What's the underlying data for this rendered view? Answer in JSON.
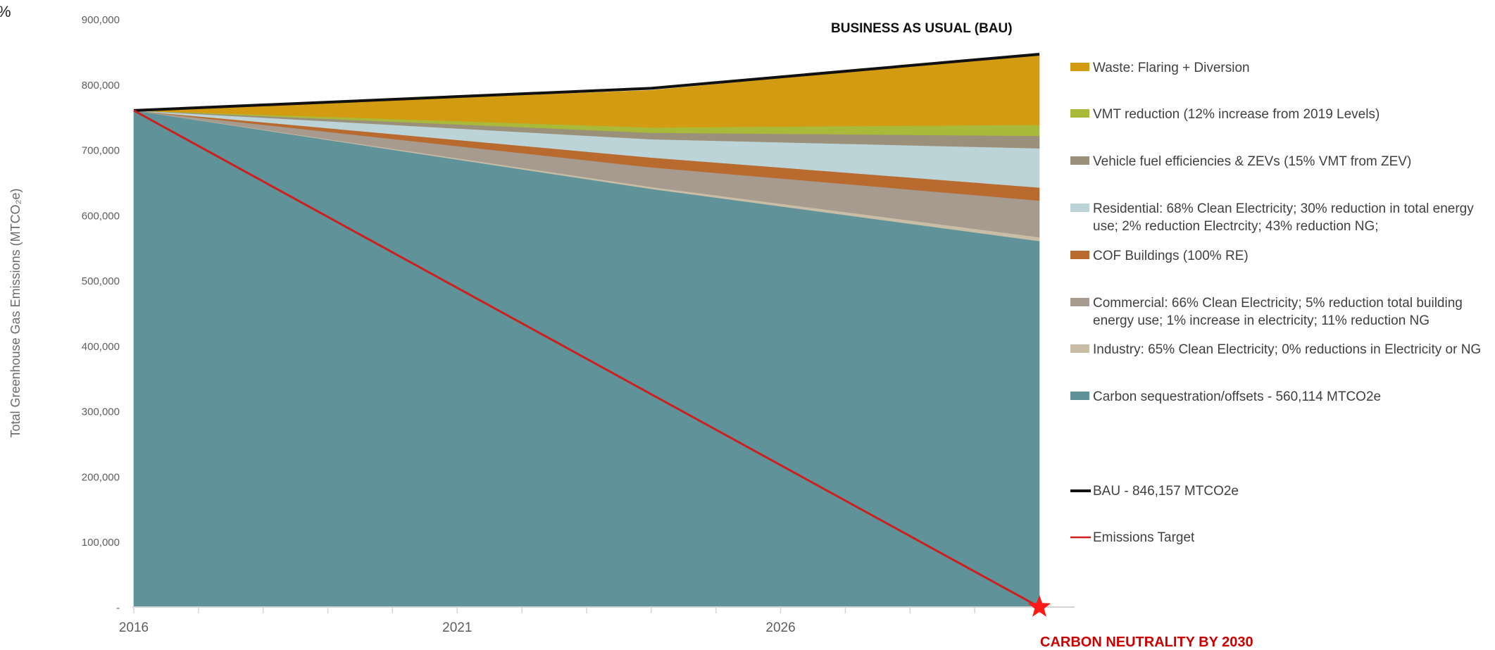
{
  "corner_mark": "%",
  "chart_data": {
    "type": "area",
    "title": "",
    "xlabel": "",
    "ylabel": "Total Greenhouse Gas Emissions (MTCO₂e)",
    "ylim": [
      0,
      900000
    ],
    "y_ticks": [
      0,
      100000,
      200000,
      300000,
      400000,
      500000,
      600000,
      700000,
      800000,
      900000
    ],
    "y_tick_labels": [
      "-",
      "100,000",
      "200,000",
      "300,000",
      "400,000",
      "500,000",
      "600,000",
      "700,000",
      "800,000",
      "900,000"
    ],
    "x_range": [
      2016,
      2030
    ],
    "x_tick_labels": [
      {
        "x": 2016,
        "label": "2016"
      },
      {
        "x": 2021,
        "label": "2021"
      },
      {
        "x": 2026,
        "label": "2026"
      }
    ],
    "stacked": true,
    "x": [
      2016,
      2024,
      2030
    ],
    "series": [
      {
        "name": "Carbon sequestration/offsets - 560,114 MTCO2e",
        "color": "#5f9399",
        "values": [
          760000,
          640000,
          560114
        ]
      },
      {
        "name": "Industry: 65% Clean Electricity; 0% reductions in Electricity or NG",
        "color": "#c9bda6",
        "values": [
          0,
          3000,
          6000
        ]
      },
      {
        "name": "Commercial: 66% Clean Electricity; 5% reduction total building energy use; 1% increase in electricity; 11% reduction NG",
        "color": "#a79b8f",
        "values": [
          0,
          30000,
          56000
        ]
      },
      {
        "name": "COF Buildings (100% RE)",
        "color": "#b86a2f",
        "values": [
          0,
          15000,
          20000
        ]
      },
      {
        "name": "Residential: 68% Clean Electricity; 30% reduction in total energy use; 2% reduction Electrcity; 43% reduction NG;",
        "color": "#bcd3d7",
        "values": [
          0,
          28000,
          60000
        ]
      },
      {
        "name": "Vehicle fuel efficiencies & ZEVs (15% VMT from ZEV)",
        "color": "#9b9079",
        "values": [
          0,
          10000,
          19000
        ]
      },
      {
        "name": "VMT reduction (12% increase from 2019 Levels)",
        "color": "#a9b93a",
        "values": [
          0,
          8000,
          17000
        ]
      },
      {
        "name": "Waste: Flaring + Diversion",
        "color": "#d39b12",
        "values": [
          0,
          57000,
          108043
        ]
      }
    ],
    "legend_order": [
      "Waste: Flaring + Diversion",
      "VMT reduction (12% increase from 2019 Levels)",
      "Vehicle fuel efficiencies & ZEVs (15% VMT from ZEV)",
      "Residential: 68% Clean Electricity; 30% reduction in total energy use; 2% reduction Electrcity; 43% reduction NG;",
      "COF Buildings (100% RE)",
      "Commercial: 66% Clean Electricity; 5% reduction total building energy use; 1% increase in electricity; 11% reduction NG",
      "Industry: 65% Clean Electricity; 0% reductions in Electricity or NG",
      "Carbon sequestration/offsets - 560,114 MTCO2e"
    ],
    "lines": [
      {
        "name": "BAU - 846,157 MTCO2e",
        "color": "#111111",
        "x": [
          2016,
          2024,
          2030
        ],
        "y": [
          760000,
          794000,
          846157
        ]
      },
      {
        "name": "Emissions Target",
        "color": "#cc1f1f",
        "x": [
          2016,
          2030
        ],
        "y": [
          760000,
          0
        ]
      }
    ],
    "legend_placement": "right",
    "grid": false,
    "annotations": [
      {
        "text": "BUSINESS AS USUAL (BAU)",
        "x": 2030,
        "y": 846157
      },
      {
        "text": "CARBON NEUTRALITY BY 2030",
        "x": 2030,
        "y": 0
      }
    ],
    "star_marker": {
      "x": 2030,
      "y": 0,
      "color": "#ff1a1a"
    }
  }
}
